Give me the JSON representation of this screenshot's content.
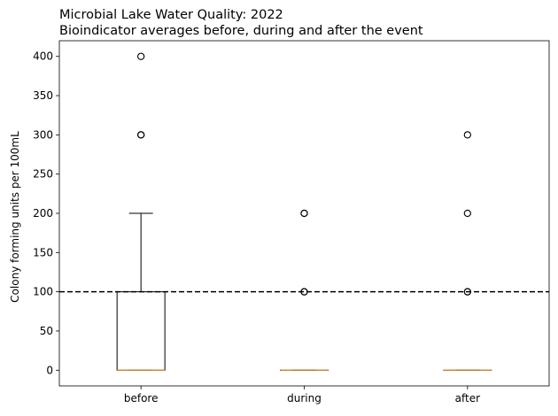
{
  "chart_data": {
    "type": "box",
    "title_line1": "Microbial Lake Water Quality: 2022",
    "title_line2": "Bioindicator averages before, during and after the event",
    "xlabel": "",
    "ylabel": "Colony forming units per 100mL",
    "ylim": [
      -20,
      420
    ],
    "yticks": [
      0,
      50,
      100,
      150,
      200,
      250,
      300,
      350,
      400
    ],
    "categories": [
      "before",
      "during",
      "after"
    ],
    "boxes": [
      {
        "category": "before",
        "q1": 0,
        "median": 0,
        "q3": 100,
        "whisker_low": 0,
        "whisker_high": 200,
        "outliers": [
          300,
          300,
          400
        ]
      },
      {
        "category": "during",
        "q1": 0,
        "median": 0,
        "q3": 0,
        "whisker_low": 0,
        "whisker_high": 0,
        "outliers": [
          100,
          100,
          200,
          200
        ]
      },
      {
        "category": "after",
        "q1": 0,
        "median": 0,
        "q3": 0,
        "whisker_low": 0,
        "whisker_high": 0,
        "outliers": [
          100,
          100,
          200,
          300
        ]
      }
    ],
    "reference_line": {
      "y": 100,
      "style": "dashed",
      "color": "#000000"
    },
    "colors": {
      "box": "#000000",
      "median": "#e08a2c",
      "outlier": "#000000"
    },
    "grid": false,
    "legend": "none"
  }
}
